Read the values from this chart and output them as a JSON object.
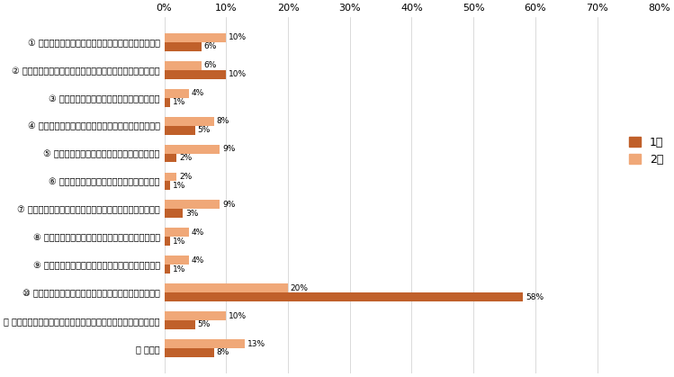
{
  "categories": [
    "① 研究が一段落し、新たな研究の立ち上げ期に入った",
    "② 異動により、新たに研究室・研究チームを立ち上げている",
    "③ 研究成果の応用や実用化フェーズに入った",
    "④ 外部資金が途絶えた、または、外部資金が減少した",
    "⑤ 所属組織より措置される内部資金が減少した",
    "⑥ 他の組織等との連携、共同研究が終了した",
    "⑦ 中核となるメンバーが研究チーム・研究室から異動した",
    "⑧ 支援スタッフが研究チーム・研究室から異動した",
    "⑨ 最先端の機器や施設へのアクセスが困難となった",
    "⑩ 職務時間内で研究以外への活動に割く時間が増加した",
    "⑪ ライフステージの移行により、研究に割り当てる時間が減った",
    "⑫ その他"
  ],
  "values_1": [
    6,
    10,
    1,
    5,
    2,
    1,
    3,
    1,
    1,
    58,
    5,
    8
  ],
  "values_2": [
    10,
    6,
    4,
    8,
    9,
    2,
    9,
    4,
    4,
    20,
    10,
    13
  ],
  "color_1": "#C0602A",
  "color_2": "#F0A878",
  "legend_1": "1位",
  "legend_2": "2位",
  "xlim": [
    0,
    80
  ],
  "xticks": [
    0,
    10,
    20,
    30,
    40,
    50,
    60,
    70,
    80
  ],
  "bar_height": 0.32,
  "figsize": [
    7.49,
    4.19
  ],
  "dpi": 100
}
